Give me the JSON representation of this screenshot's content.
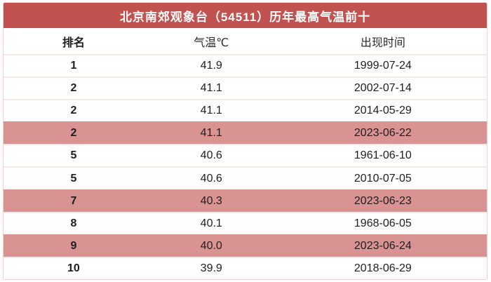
{
  "table": {
    "title": "北京南郊观象台（54511）历年最高气温前十",
    "columns": {
      "rank": "排名",
      "temp": "气温℃",
      "date": "出现时间"
    },
    "rows": [
      {
        "rank": "1",
        "temp": "41.9",
        "date": "1999-07-24",
        "highlight": false
      },
      {
        "rank": "2",
        "temp": "41.1",
        "date": "2002-07-14",
        "highlight": false
      },
      {
        "rank": "2",
        "temp": "41.1",
        "date": "2014-05-29",
        "highlight": false
      },
      {
        "rank": "2",
        "temp": "41.1",
        "date": "2023-06-22",
        "highlight": true
      },
      {
        "rank": "5",
        "temp": "40.6",
        "date": "1961-06-10",
        "highlight": false
      },
      {
        "rank": "5",
        "temp": "40.6",
        "date": "2010-07-05",
        "highlight": false
      },
      {
        "rank": "7",
        "temp": "40.3",
        "date": "2023-06-23",
        "highlight": true
      },
      {
        "rank": "8",
        "temp": "40.1",
        "date": "1968-06-05",
        "highlight": false
      },
      {
        "rank": "9",
        "temp": "40.0",
        "date": "2023-06-24",
        "highlight": true
      },
      {
        "rank": "10",
        "temp": "39.9",
        "date": "2018-06-29",
        "highlight": false
      }
    ],
    "colors": {
      "header_bg": "#c15250",
      "highlight_bg": "#d89392",
      "separator": "#f5e8e7",
      "outer_border": "#f0d2d0",
      "title_text": "#ffffff",
      "body_text": "#1e1e1e"
    }
  },
  "chart_data": {
    "type": "table",
    "title": "北京南郊观象台（54511）历年最高气温前十",
    "columns": [
      "排名",
      "气温℃",
      "出现时间"
    ],
    "rows": [
      [
        1,
        41.9,
        "1999-07-24"
      ],
      [
        2,
        41.1,
        "2002-07-14"
      ],
      [
        2,
        41.1,
        "2014-05-29"
      ],
      [
        2,
        41.1,
        "2023-06-22"
      ],
      [
        5,
        40.6,
        "1961-06-10"
      ],
      [
        5,
        40.6,
        "2010-07-05"
      ],
      [
        7,
        40.3,
        "2023-06-23"
      ],
      [
        8,
        40.1,
        "1968-06-05"
      ],
      [
        9,
        40.0,
        "2023-06-24"
      ],
      [
        10,
        39.9,
        "2018-06-29"
      ]
    ],
    "highlighted_row_indices": [
      3,
      6,
      8
    ],
    "highlight_meaning": "records set in 2023",
    "legend_position": "none",
    "grid": "horizontal-separators"
  }
}
